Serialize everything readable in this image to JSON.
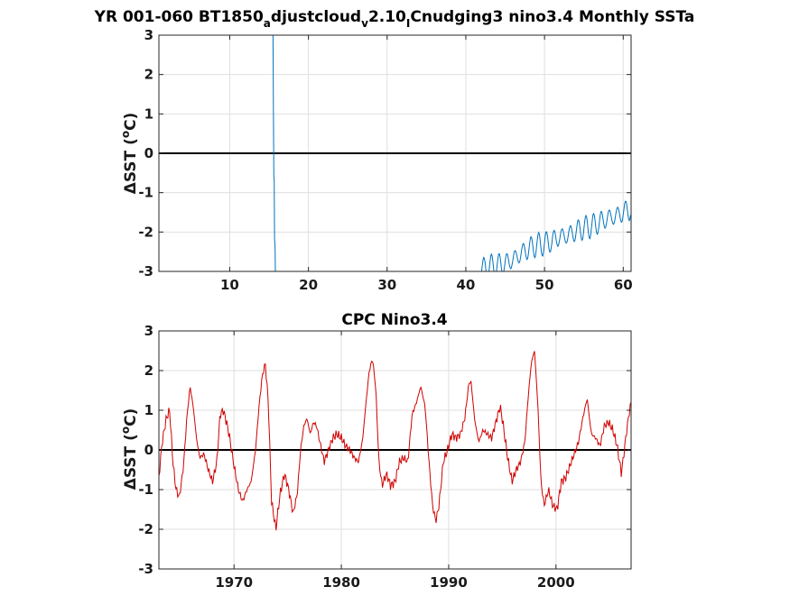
{
  "chart_data": [
    {
      "type": "line",
      "title": "YR 001-060 BT1850_adjustcloud_v2.10_ICnudging3 nino3.4 Monthly SSTa",
      "title_parts": [
        "YR 001-060 BT1850",
        "a",
        "djustcloud",
        "v",
        "2.10",
        "I",
        "Cnudging3 nino3.4 Monthly SSTa"
      ],
      "ylabel": "ΔSST (°C)",
      "ylabel_parts": [
        "ΔSST (",
        "o",
        "C)"
      ],
      "xlim": [
        1,
        61
      ],
      "ylim": [
        -3,
        3
      ],
      "xticks": [
        10,
        20,
        30,
        40,
        50,
        60
      ],
      "yticks": [
        3,
        2,
        1,
        0,
        -1,
        -2,
        -3
      ],
      "grid": true,
      "zero_line": true,
      "series": [
        {
          "color": "#0072bd",
          "segments": [
            {
              "x": [
                15.5,
                15.55,
                15.6,
                15.65,
                15.7,
                15.75,
                15.8
              ],
              "y": [
                3.0,
                1.2,
                -0.6,
                -0.65,
                -2.2,
                -2.3,
                -3.0
              ]
            },
            {
              "x": [
                41.6,
                42.0,
                43.0,
                44.0,
                45.0,
                46.0,
                47.0,
                48.0,
                49.0,
                50.0,
                51.0,
                52.0,
                53.0,
                54.0,
                55.0,
                56.0,
                57.0,
                58.0,
                59.0,
                60.0,
                61.0
              ],
              "y": [
                -3.0,
                -2.95,
                -2.88,
                -2.84,
                -2.8,
                -2.7,
                -2.55,
                -2.42,
                -2.33,
                -2.3,
                -2.22,
                -2.12,
                -2.08,
                -1.98,
                -1.9,
                -1.85,
                -1.75,
                -1.65,
                -1.6,
                -1.5,
                -1.4
              ]
            }
          ],
          "seasonal_amplitude": 0.25
        }
      ]
    },
    {
      "type": "line",
      "title": "CPC Nino3.4",
      "ylabel": "ΔSST (°C)",
      "ylabel_parts": [
        "ΔSST (",
        "o",
        "C)"
      ],
      "xlim": [
        1963,
        2007
      ],
      "ylim": [
        -3,
        3
      ],
      "xticks": [
        1970,
        1980,
        1990,
        2000
      ],
      "yticks": [
        3,
        2,
        1,
        0,
        -1,
        -2,
        -3
      ],
      "grid": true,
      "zero_line": true,
      "series": [
        {
          "color": "#d00000",
          "x": [
            1963.0,
            1963.3,
            1963.7,
            1964.0,
            1964.3,
            1964.6,
            1964.9,
            1965.3,
            1965.6,
            1965.9,
            1966.2,
            1966.5,
            1966.8,
            1967.2,
            1967.6,
            1968.0,
            1968.4,
            1968.7,
            1969.0,
            1969.3,
            1969.6,
            1970.0,
            1970.4,
            1970.8,
            1971.2,
            1971.6,
            1972.0,
            1972.3,
            1972.6,
            1972.9,
            1973.2,
            1973.5,
            1973.9,
            1974.3,
            1974.7,
            1975.1,
            1975.5,
            1975.9,
            1976.2,
            1976.5,
            1976.8,
            1977.1,
            1977.4,
            1977.7,
            1978.0,
            1978.4,
            1978.8,
            1979.2,
            1979.6,
            1980.0,
            1980.4,
            1980.8,
            1981.2,
            1981.6,
            1982.0,
            1982.3,
            1982.6,
            1982.9,
            1983.2,
            1983.5,
            1983.8,
            1984.2,
            1984.6,
            1985.0,
            1985.4,
            1985.8,
            1986.2,
            1986.6,
            1987.0,
            1987.4,
            1987.8,
            1988.2,
            1988.5,
            1988.8,
            1989.1,
            1989.5,
            1989.9,
            1990.3,
            1990.7,
            1991.1,
            1991.5,
            1991.9,
            1992.1,
            1992.4,
            1992.8,
            1993.2,
            1993.6,
            1994.0,
            1994.4,
            1994.8,
            1995.1,
            1995.5,
            1995.9,
            1996.3,
            1996.7,
            1997.1,
            1997.4,
            1997.7,
            1998.0,
            1998.3,
            1998.6,
            1998.9,
            1999.3,
            1999.7,
            2000.1,
            2000.5,
            2000.9,
            2001.3,
            2001.7,
            2002.1,
            2002.5,
            2002.9,
            2003.3,
            2003.7,
            2004.1,
            2004.5,
            2004.9,
            2005.3,
            2005.7,
            2006.1,
            2006.5,
            2006.8,
            2007.0
          ],
          "y": [
            -0.7,
            0.2,
            0.8,
            1.0,
            -0.3,
            -1.0,
            -1.2,
            -0.4,
            0.8,
            1.6,
            1.1,
            0.3,
            -0.2,
            -0.1,
            -0.5,
            -0.8,
            -0.3,
            0.9,
            1.0,
            0.7,
            0.3,
            -0.4,
            -1.0,
            -1.3,
            -1.0,
            -0.8,
            0.0,
            1.0,
            1.8,
            2.2,
            1.2,
            -1.3,
            -2.0,
            -1.1,
            -0.6,
            -1.0,
            -1.6,
            -1.1,
            0.0,
            0.6,
            0.8,
            0.4,
            0.7,
            0.6,
            0.2,
            -0.3,
            0.0,
            0.3,
            0.4,
            0.3,
            0.1,
            0.0,
            -0.2,
            -0.3,
            0.3,
            1.2,
            2.0,
            2.3,
            1.6,
            -0.3,
            -0.9,
            -0.6,
            -0.9,
            -0.8,
            -0.3,
            -0.2,
            -0.3,
            0.9,
            1.2,
            1.6,
            1.1,
            -0.4,
            -1.4,
            -1.8,
            -1.4,
            -0.3,
            0.0,
            0.4,
            0.3,
            0.4,
            0.8,
            1.7,
            1.7,
            0.8,
            0.2,
            0.5,
            0.4,
            0.3,
            0.7,
            1.1,
            0.6,
            -0.2,
            -0.8,
            -0.5,
            -0.3,
            0.2,
            1.3,
            2.2,
            2.5,
            1.2,
            -0.8,
            -1.4,
            -1.0,
            -1.4,
            -1.5,
            -0.8,
            -0.7,
            -0.4,
            -0.1,
            0.2,
            0.8,
            1.3,
            0.4,
            0.3,
            0.1,
            0.6,
            0.7,
            0.5,
            0.1,
            -0.6,
            0.3,
            0.9,
            1.2
          ]
        }
      ]
    }
  ]
}
